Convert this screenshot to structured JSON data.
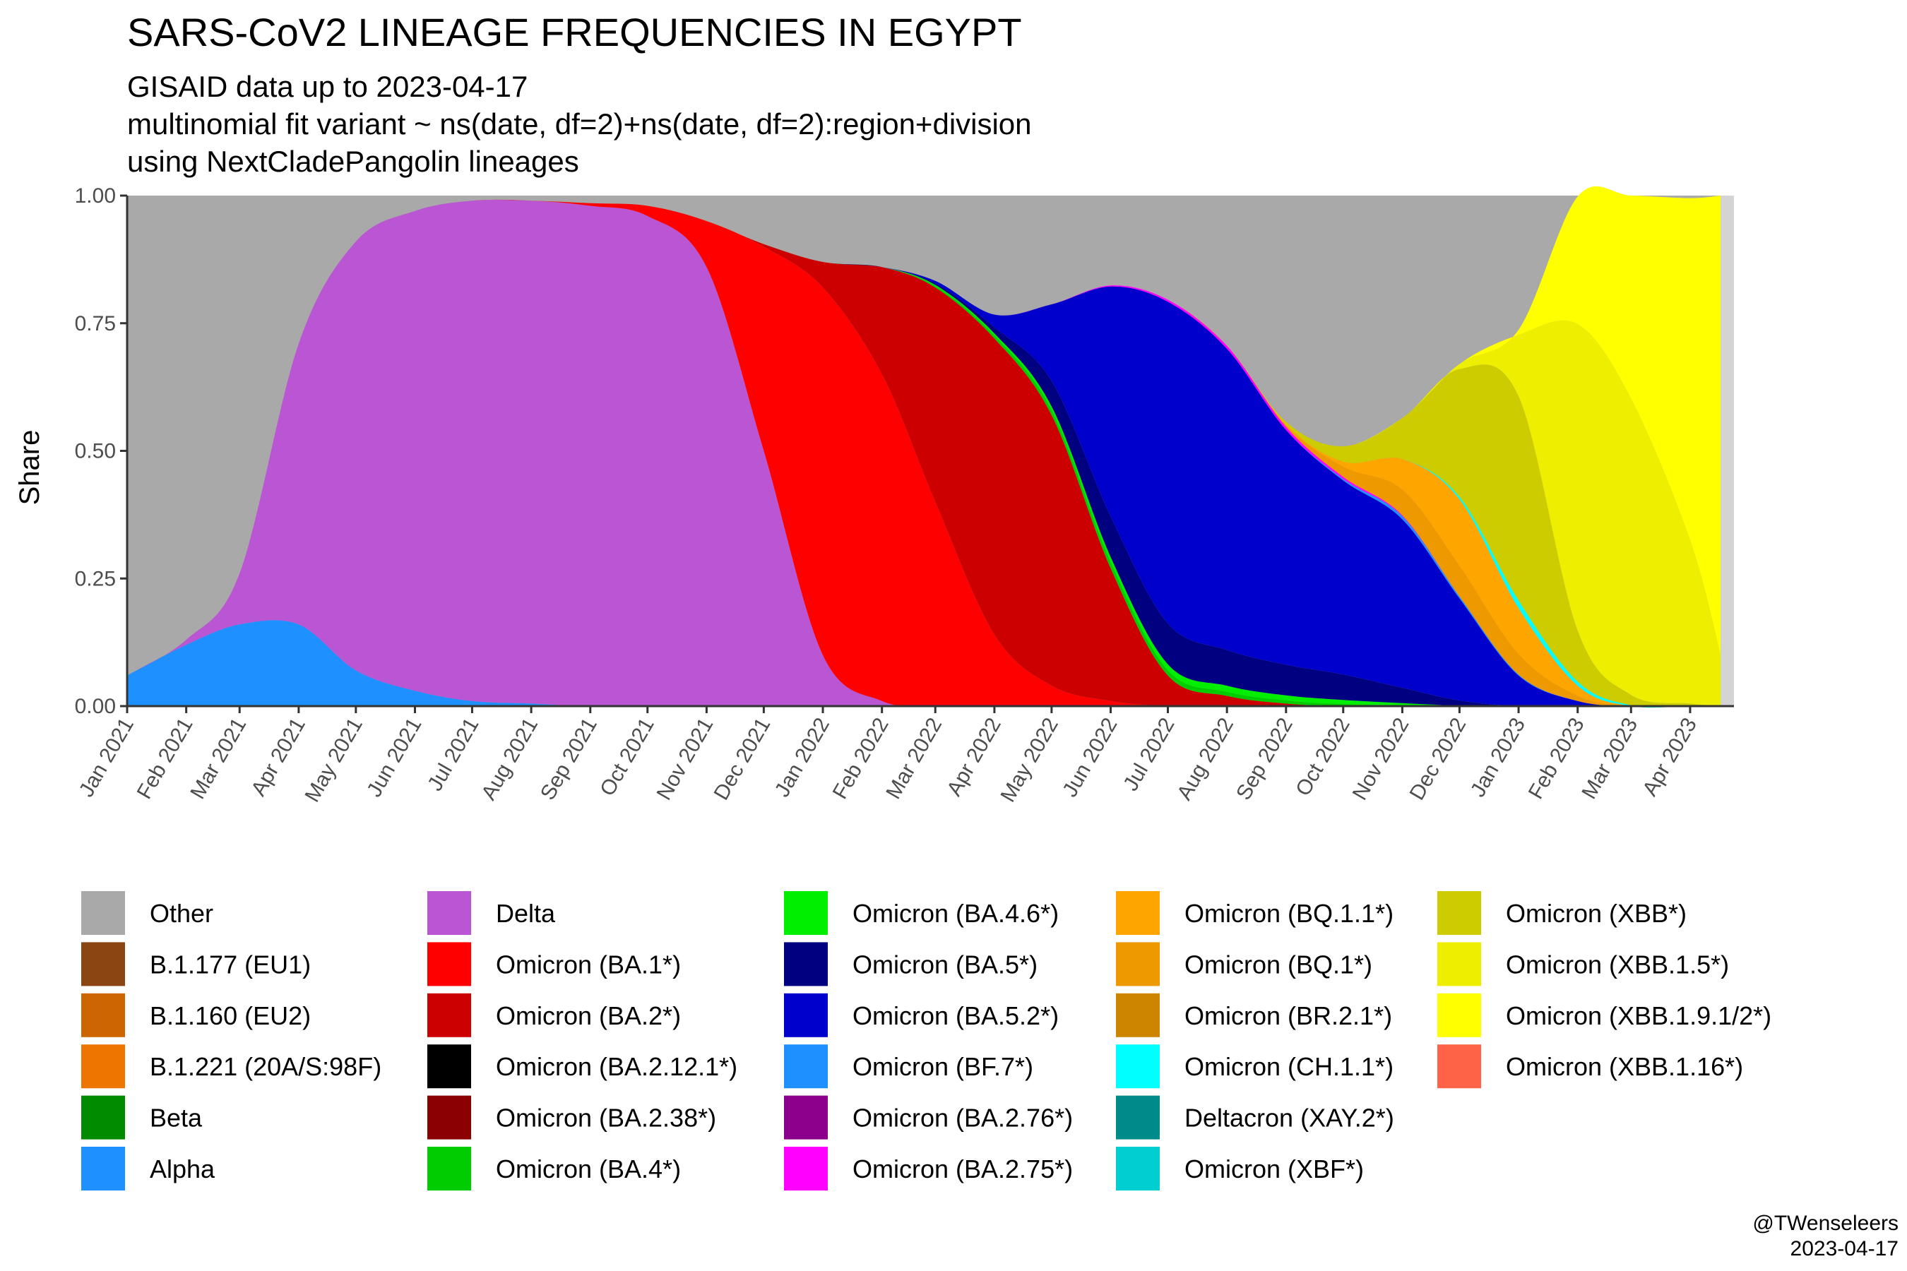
{
  "chart_data": {
    "type": "area",
    "stacked": "fill",
    "title": "SARS-CoV2 LINEAGE FREQUENCIES IN EGYPT",
    "subtitle_lines": [
      "GISAID data up to 2023-04-17",
      "multinomial fit variant ~ ns(date, df=2)+ns(date, df=2):region+division",
      "using NextCladePangolin lineages"
    ],
    "xlabel": "",
    "ylabel": "Share",
    "ylim": [
      0,
      1
    ],
    "yticks": [
      0,
      0.25,
      0.5,
      0.75,
      1
    ],
    "ytick_labels": [
      "0.00",
      "0.25",
      "0.50",
      "0.75",
      "1.00"
    ],
    "xlim": [
      "2021-01-01",
      "2023-04-24"
    ],
    "xtick_labels": [
      "Jan 2021",
      "Feb 2021",
      "Mar 2021",
      "Apr 2021",
      "May 2021",
      "Jun 2021",
      "Jul 2021",
      "Aug 2021",
      "Sep 2021",
      "Oct 2021",
      "Nov 2021",
      "Dec 2021",
      "Jan 2022",
      "Feb 2022",
      "Mar 2022",
      "Apr 2022",
      "May 2022",
      "Jun 2022",
      "Jul 2022",
      "Aug 2022",
      "Sep 2022",
      "Oct 2022",
      "Nov 2022",
      "Dec 2022",
      "Jan 2023",
      "Feb 2023",
      "Mar 2023",
      "Apr 2023"
    ],
    "x": [
      "2021-01-01",
      "2021-02-01",
      "2021-03-01",
      "2021-04-01",
      "2021-05-01",
      "2021-06-01",
      "2021-07-01",
      "2021-08-01",
      "2021-09-01",
      "2021-10-01",
      "2021-11-01",
      "2021-12-01",
      "2022-01-01",
      "2022-02-01",
      "2022-03-01",
      "2022-04-01",
      "2022-05-01",
      "2022-06-01",
      "2022-07-01",
      "2022-08-01",
      "2022-09-01",
      "2022-10-01",
      "2022-11-01",
      "2022-12-01",
      "2023-01-01",
      "2023-02-01",
      "2023-03-01",
      "2023-04-01",
      "2023-04-17"
    ],
    "series": [
      {
        "name": "Alpha",
        "color": "#1E90FF",
        "values": [
          0.06,
          0.12,
          0.16,
          0.16,
          0.07,
          0.03,
          0.01,
          0.005,
          0,
          0,
          0,
          0,
          0,
          0,
          0,
          0,
          0,
          0,
          0,
          0,
          0,
          0,
          0,
          0,
          0,
          0,
          0,
          0,
          0
        ]
      },
      {
        "name": "Delta",
        "color": "#BA55D3",
        "values": [
          0,
          0.01,
          0.1,
          0.55,
          0.84,
          0.94,
          0.98,
          0.985,
          0.98,
          0.96,
          0.86,
          0.5,
          0.1,
          0.01,
          0,
          0,
          0,
          0,
          0,
          0,
          0,
          0,
          0,
          0,
          0,
          0,
          0,
          0,
          0
        ]
      },
      {
        "name": "Omicron (BA.1*)",
        "color": "#FF0000",
        "values": [
          0,
          0,
          0,
          0,
          0,
          0,
          0,
          0,
          0.005,
          0.02,
          0.09,
          0.4,
          0.72,
          0.64,
          0.4,
          0.14,
          0.04,
          0.01,
          0,
          0,
          0,
          0,
          0,
          0,
          0,
          0,
          0,
          0,
          0
        ]
      },
      {
        "name": "Omicron (BA.2*)",
        "color": "#CC0000",
        "values": [
          0,
          0,
          0,
          0,
          0,
          0,
          0,
          0,
          0,
          0,
          0,
          0.005,
          0.05,
          0.21,
          0.42,
          0.58,
          0.53,
          0.26,
          0.06,
          0.02,
          0.005,
          0,
          0,
          0,
          0,
          0,
          0,
          0,
          0
        ]
      },
      {
        "name": "Omicron (BA.4*)",
        "color": "#00CC00",
        "values": [
          0,
          0,
          0,
          0,
          0,
          0,
          0,
          0,
          0,
          0,
          0,
          0,
          0,
          0,
          0.003,
          0.006,
          0.01,
          0.012,
          0.01,
          0.008,
          0.006,
          0.004,
          0.002,
          0,
          0,
          0,
          0,
          0,
          0
        ]
      },
      {
        "name": "Omicron (BA.4.6*)",
        "color": "#00EE00",
        "values": [
          0,
          0,
          0,
          0,
          0,
          0,
          0,
          0,
          0,
          0,
          0,
          0,
          0,
          0,
          0.002,
          0.004,
          0.007,
          0.01,
          0.012,
          0.012,
          0.01,
          0.008,
          0.004,
          0.001,
          0,
          0,
          0,
          0,
          0
        ]
      },
      {
        "name": "Omicron (BA.5*)",
        "color": "#000080",
        "values": [
          0,
          0,
          0,
          0,
          0,
          0,
          0,
          0,
          0,
          0,
          0,
          0,
          0,
          0,
          0.003,
          0.012,
          0.05,
          0.08,
          0.08,
          0.07,
          0.06,
          0.05,
          0.03,
          0.01,
          0,
          0,
          0,
          0,
          0
        ]
      },
      {
        "name": "Omicron (BA.5.2*)",
        "color": "#0000CC",
        "values": [
          0,
          0,
          0,
          0,
          0,
          0,
          0,
          0,
          0,
          0,
          0,
          0,
          0,
          0,
          0.005,
          0.025,
          0.15,
          0.45,
          0.63,
          0.59,
          0.46,
          0.38,
          0.33,
          0.2,
          0.06,
          0.01,
          0,
          0,
          0
        ]
      },
      {
        "name": "Omicron (BF.7*)",
        "color": "#1E90FF",
        "values": [
          0,
          0,
          0,
          0,
          0,
          0,
          0,
          0,
          0,
          0,
          0,
          0,
          0,
          0,
          0,
          0,
          0,
          0,
          0,
          0,
          0,
          0.003,
          0.006,
          0.004,
          0.002,
          0,
          0,
          0,
          0
        ]
      },
      {
        "name": "Omicron (BA.2.75*)",
        "color": "#FF00FF",
        "values": [
          0,
          0,
          0,
          0,
          0,
          0,
          0,
          0,
          0,
          0,
          0,
          0,
          0,
          0,
          0,
          0,
          0,
          0.002,
          0.004,
          0.006,
          0.006,
          0.004,
          0.002,
          0,
          0,
          0,
          0,
          0,
          0
        ]
      },
      {
        "name": "Omicron (BQ.1*)",
        "color": "#EE9900",
        "values": [
          0,
          0,
          0,
          0,
          0,
          0,
          0,
          0,
          0,
          0,
          0,
          0,
          0,
          0,
          0,
          0,
          0,
          0,
          0,
          0,
          0.003,
          0.02,
          0.05,
          0.06,
          0.04,
          0.01,
          0,
          0,
          0
        ]
      },
      {
        "name": "Omicron (BQ.1.1*)",
        "color": "#FFA500",
        "values": [
          0,
          0,
          0,
          0,
          0,
          0,
          0,
          0,
          0,
          0,
          0,
          0,
          0,
          0,
          0,
          0,
          0,
          0,
          0,
          0,
          0.002,
          0.01,
          0.06,
          0.13,
          0.09,
          0.02,
          0,
          0,
          0
        ]
      },
      {
        "name": "Omicron (CH.1.1*)",
        "color": "#00FFFF",
        "values": [
          0,
          0,
          0,
          0,
          0,
          0,
          0,
          0,
          0,
          0,
          0,
          0,
          0,
          0,
          0,
          0,
          0,
          0,
          0,
          0,
          0,
          0,
          0,
          0.005,
          0.015,
          0.008,
          0.002,
          0,
          0
        ]
      },
      {
        "name": "Omicron (XBB*)",
        "color": "#CCCC00",
        "values": [
          0,
          0,
          0,
          0,
          0,
          0,
          0,
          0,
          0,
          0,
          0,
          0,
          0,
          0,
          0,
          0,
          0,
          0,
          0,
          0,
          0.005,
          0.03,
          0.08,
          0.25,
          0.4,
          0.1,
          0.02,
          0.005,
          0
        ]
      },
      {
        "name": "Omicron (XBB.1.5*)",
        "color": "#EEEE00",
        "values": [
          0,
          0,
          0,
          0,
          0,
          0,
          0,
          0,
          0,
          0,
          0,
          0,
          0,
          0,
          0,
          0,
          0,
          0,
          0,
          0,
          0,
          0,
          0,
          0.01,
          0.12,
          0.6,
          0.58,
          0.32,
          0.1
        ]
      },
      {
        "name": "Omicron (XBB.1.9.1/2*)",
        "color": "#FFFF00",
        "values": [
          0,
          0,
          0,
          0,
          0,
          0,
          0,
          0,
          0,
          0,
          0,
          0,
          0,
          0,
          0,
          0,
          0,
          0,
          0,
          0,
          0,
          0,
          0,
          0,
          0.01,
          0.25,
          0.4,
          0.67,
          0.9
        ]
      }
    ],
    "other": {
      "name": "Other",
      "color": "#A9A9A9"
    },
    "projection_band": {
      "from": "2023-04-17",
      "to": "2023-04-24",
      "opacity": 0.5
    }
  },
  "legend": {
    "columns": [
      [
        {
          "label": "Other",
          "color": "#A9A9A9"
        },
        {
          "label": "B.1.177 (EU1)",
          "color": "#8B4513"
        },
        {
          "label": "B.1.160 (EU2)",
          "color": "#CD6600"
        },
        {
          "label": "B.1.221 (20A/S:98F)",
          "color": "#EE7600"
        },
        {
          "label": "Beta",
          "color": "#008B00"
        },
        {
          "label": "Alpha",
          "color": "#1E90FF"
        }
      ],
      [
        {
          "label": "Delta",
          "color": "#BA55D3"
        },
        {
          "label": "Omicron (BA.1*)",
          "color": "#FF0000"
        },
        {
          "label": "Omicron (BA.2*)",
          "color": "#CC0000"
        },
        {
          "label": "Omicron (BA.2.12.1*)",
          "color": "#000000"
        },
        {
          "label": "Omicron (BA.2.38*)",
          "color": "#8B0000"
        },
        {
          "label": "Omicron (BA.4*)",
          "color": "#00CC00"
        }
      ],
      [
        {
          "label": "Omicron (BA.4.6*)",
          "color": "#00EE00"
        },
        {
          "label": "Omicron (BA.5*)",
          "color": "#000080"
        },
        {
          "label": "Omicron (BA.5.2*)",
          "color": "#0000CC"
        },
        {
          "label": "Omicron (BF.7*)",
          "color": "#1E90FF"
        },
        {
          "label": "Omicron (BA.2.76*)",
          "color": "#8B008B"
        },
        {
          "label": "Omicron (BA.2.75*)",
          "color": "#FF00FF"
        }
      ],
      [
        {
          "label": "Omicron (BQ.1.1*)",
          "color": "#FFA500"
        },
        {
          "label": "Omicron (BQ.1*)",
          "color": "#EE9900"
        },
        {
          "label": "Omicron (BR.2.1*)",
          "color": "#CD8500"
        },
        {
          "label": "Omicron (CH.1.1*)",
          "color": "#00FFFF"
        },
        {
          "label": "Deltacron (XAY.2*)",
          "color": "#008B8B"
        },
        {
          "label": "Omicron (XBF*)",
          "color": "#00CED1"
        }
      ],
      [
        {
          "label": "Omicron (XBB*)",
          "color": "#CCCC00"
        },
        {
          "label": "Omicron (XBB.1.5*)",
          "color": "#EEEE00"
        },
        {
          "label": "Omicron (XBB.1.9.1/2*)",
          "color": "#FFFF00"
        },
        {
          "label": "Omicron (XBB.1.16*)",
          "color": "#FF6347"
        }
      ]
    ]
  },
  "caption": {
    "handle": "@TWenseleers",
    "date": "2023-04-17"
  }
}
